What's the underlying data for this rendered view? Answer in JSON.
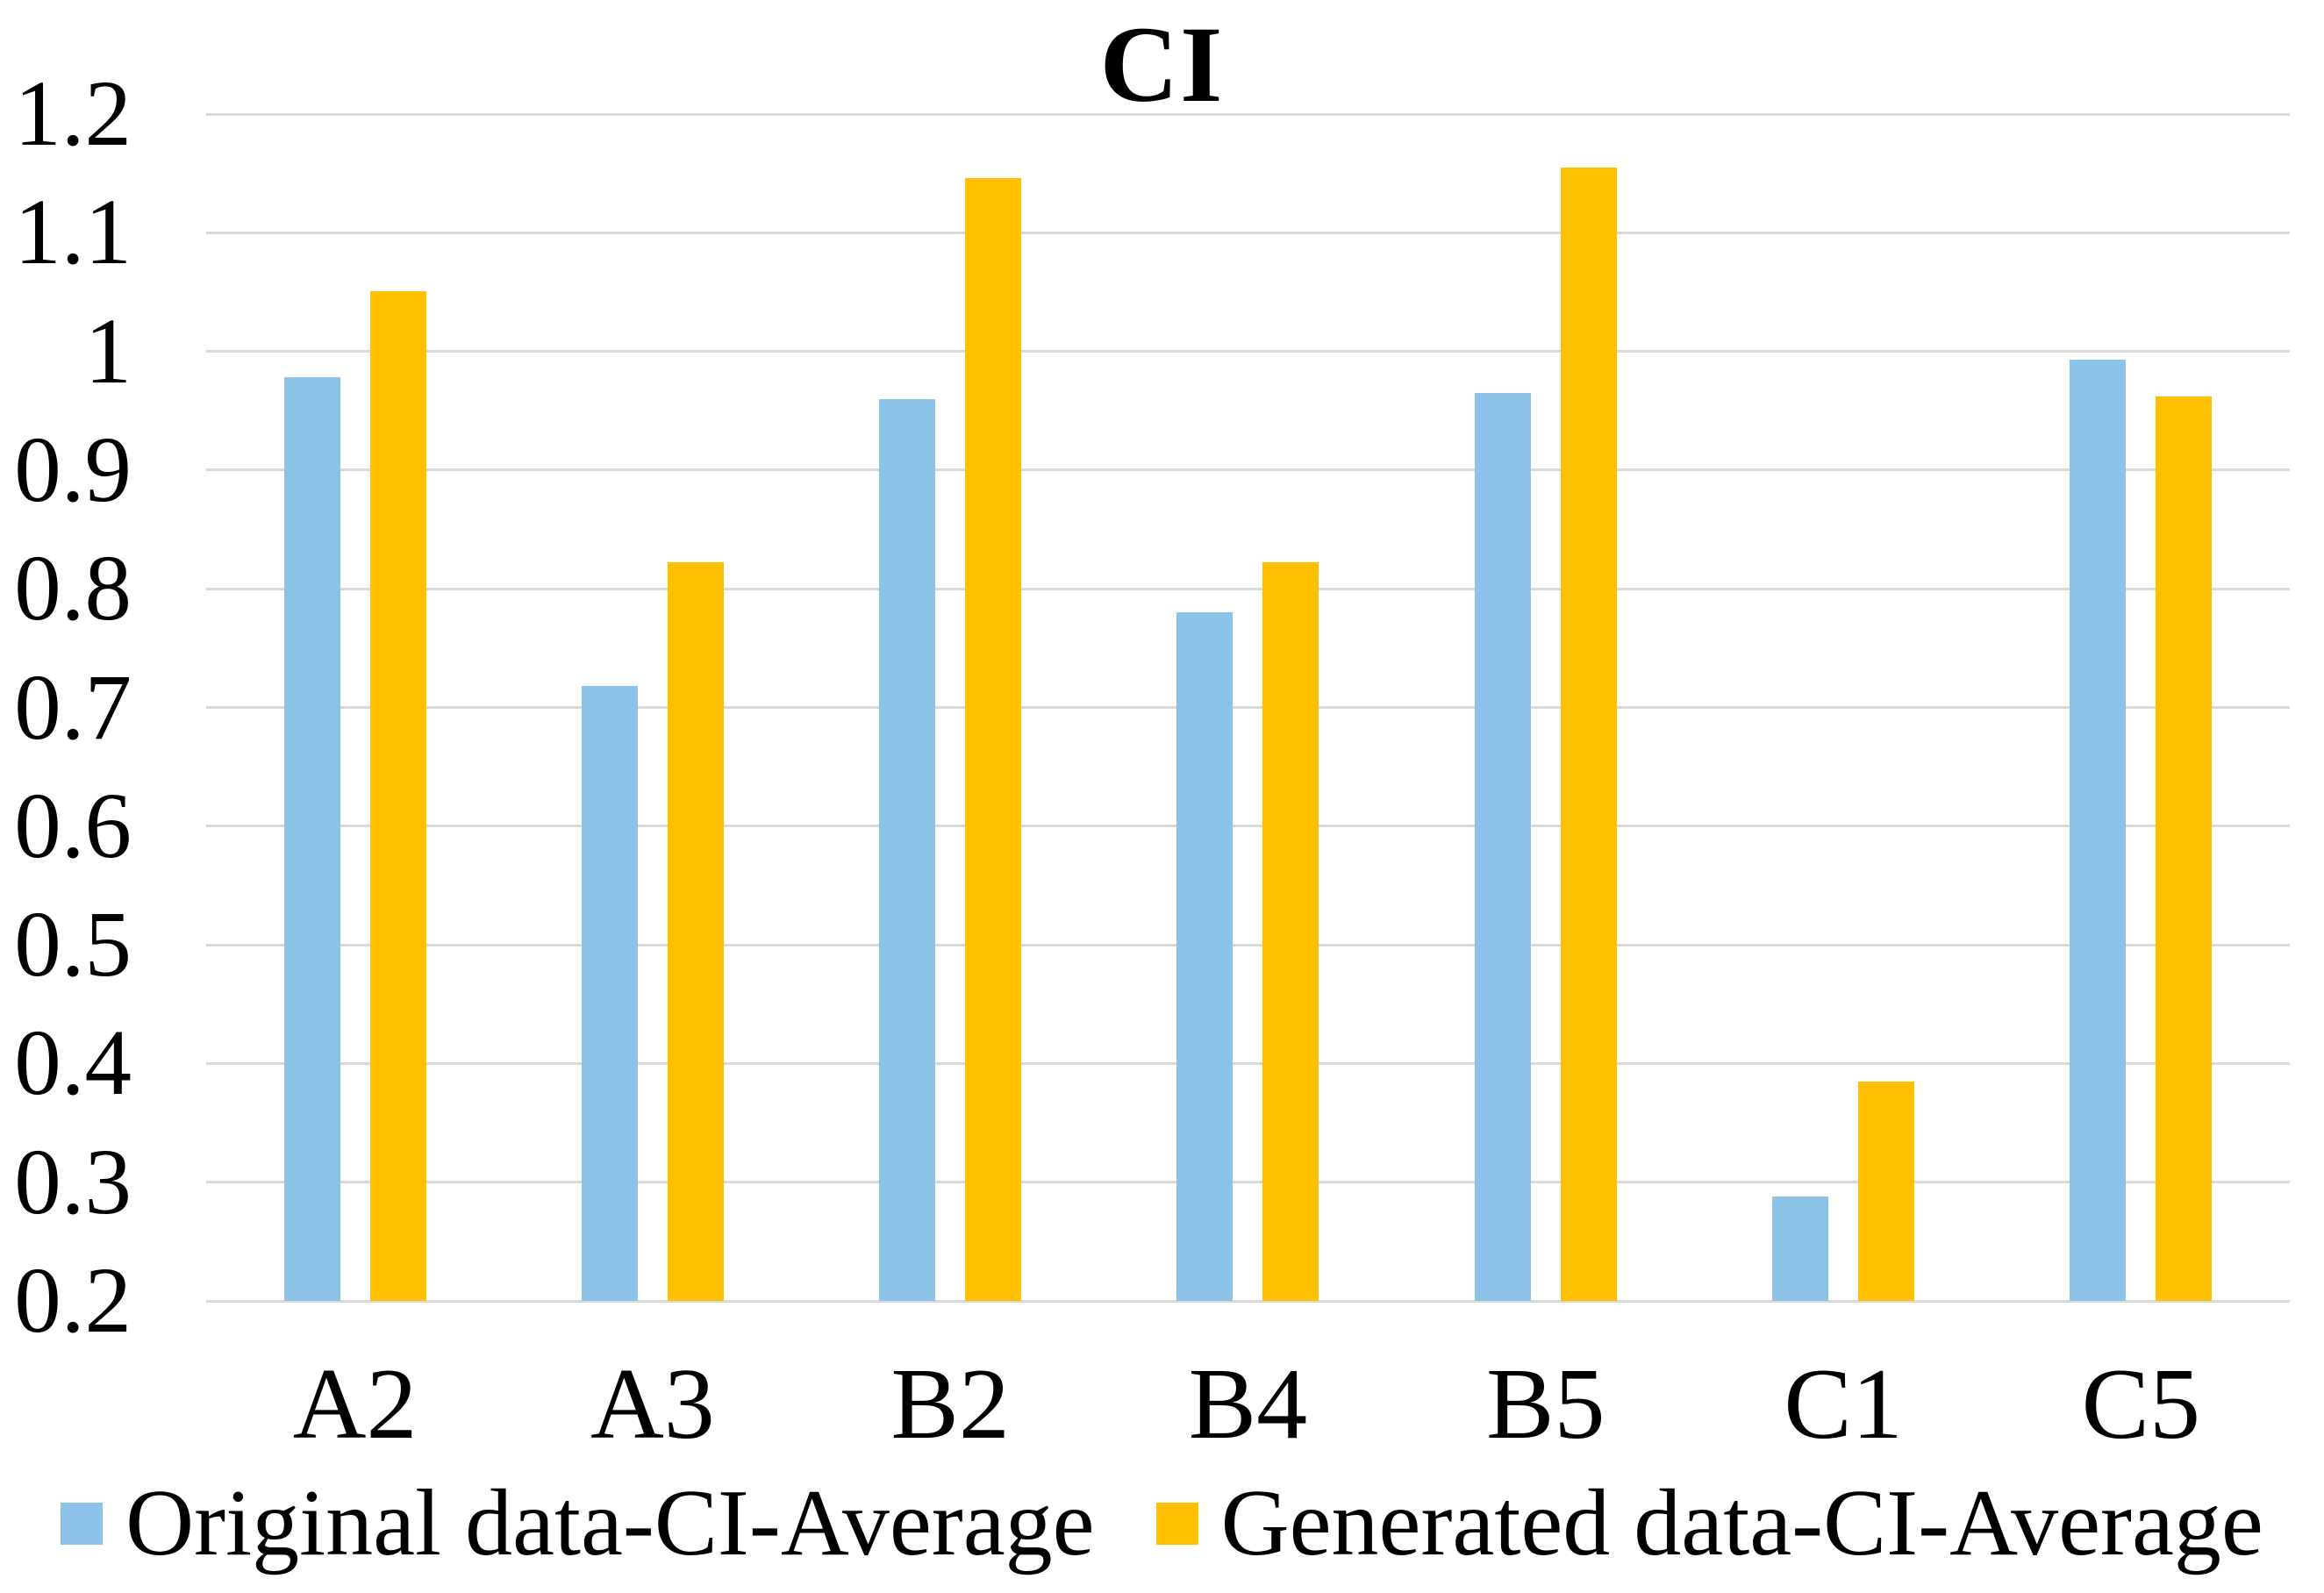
{
  "chart_data": {
    "type": "bar",
    "title": "CI",
    "categories": [
      "A2",
      "A3",
      "B2",
      "B4",
      "B5",
      "C1",
      "C5"
    ],
    "series": [
      {
        "name": "Original data-CI-Average",
        "color": "#8DC3E9",
        "values": [
          0.978,
          0.718,
          0.96,
          0.78,
          0.965,
          0.288,
          0.993
        ]
      },
      {
        "name": "Generated data-CI-Average",
        "color": "#FFC000",
        "values": [
          1.051,
          0.822,
          1.146,
          0.822,
          1.155,
          0.385,
          0.962
        ]
      }
    ],
    "xlabel": "",
    "ylabel": "",
    "ylim": [
      0.2,
      1.2
    ],
    "y_tick_step": 0.1,
    "y_ticks": [
      "1.2",
      "1.1",
      "1",
      "0.9",
      "0.8",
      "0.7",
      "0.6",
      "0.5",
      "0.4",
      "0.3",
      "0.2"
    ],
    "grid": true,
    "legend_position": "bottom",
    "gridline_color": "#D9D9D9",
    "text_color": "#000000",
    "background_color": "#FFFFFF"
  }
}
